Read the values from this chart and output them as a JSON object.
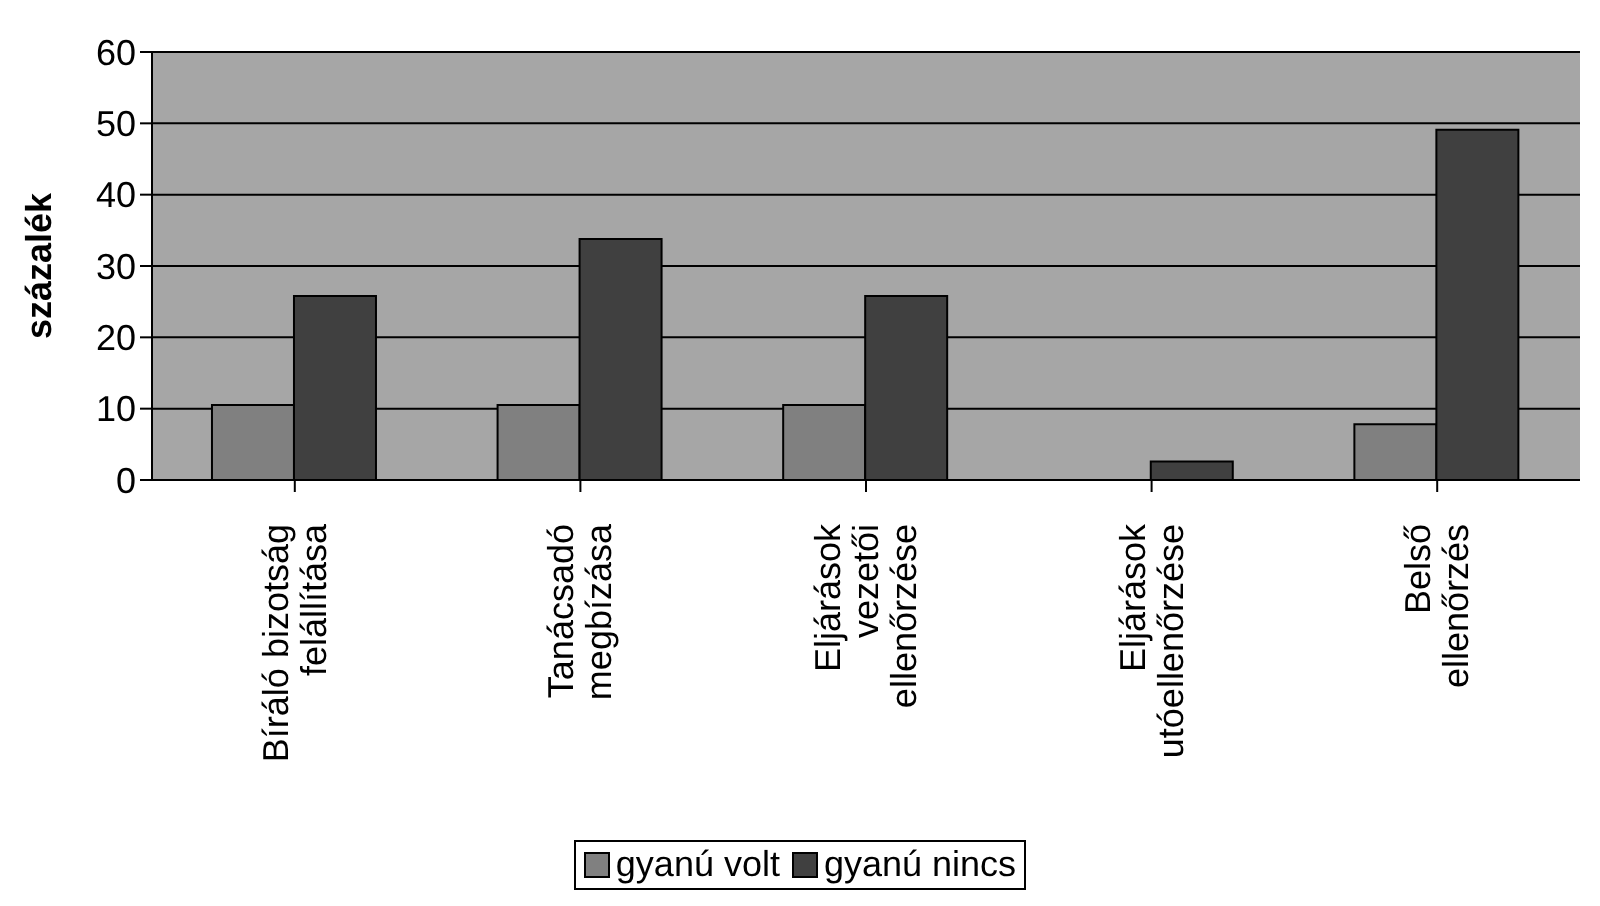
{
  "chart_data": {
    "type": "bar",
    "ylabel": "százalék",
    "categories": [
      "Bíráló bizotság\nfelállítása",
      "Tanácsadó\nmegbízása",
      "Eljárások\nvezetői\nellenőrzése",
      "Eljárások\nutóellenőrzése",
      "Belső\nellenőrzés"
    ],
    "series": [
      {
        "name": "gyanú volt",
        "color": "#808080",
        "values": [
          10.5,
          10.5,
          10.5,
          0,
          7.8
        ]
      },
      {
        "name": "gyanú nincs",
        "color": "#404040",
        "values": [
          25.8,
          33.8,
          25.8,
          2.6,
          49.1
        ]
      }
    ],
    "ylim": [
      0,
      60
    ],
    "yticks": [
      0,
      10,
      20,
      30,
      40,
      50,
      60
    ],
    "grid": "y",
    "legend": "bottom"
  }
}
